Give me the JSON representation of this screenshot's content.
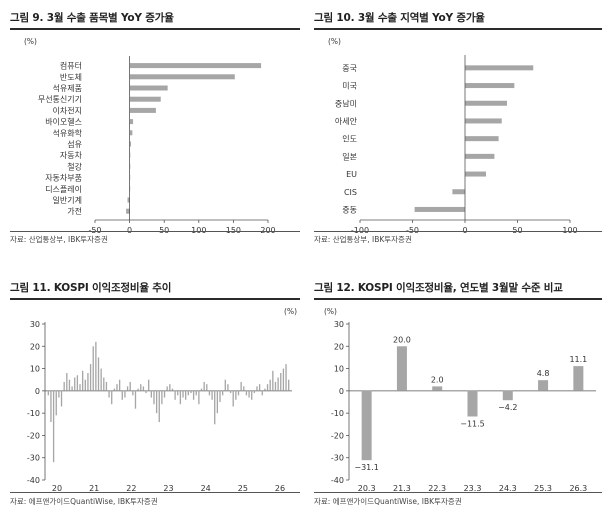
{
  "chart_data": [
    {
      "type": "bar",
      "orientation": "horizontal",
      "title": "그림 9. 3월 수출 품목별 YoY 증가율",
      "unit": "(%)",
      "source": "자료: 산업통상부, IBK투자증권",
      "categories": [
        "컴퓨터",
        "반도체",
        "석유제품",
        "무선통신기기",
        "이차전지",
        "바이오헬스",
        "석유화학",
        "섬유",
        "자동차",
        "철강",
        "자동차부품",
        "디스플레이",
        "일반기계",
        "가전"
      ],
      "values": [
        190,
        152,
        55,
        45,
        38,
        5,
        4,
        2,
        1,
        1,
        0,
        0,
        -3,
        -5
      ],
      "xlim": [
        -50,
        200
      ],
      "xticks": [
        "-50",
        "0",
        "50",
        "100",
        "150",
        "200"
      ],
      "xtick_values": [
        -50,
        0,
        50,
        100,
        150,
        200
      ],
      "bar_color": "#a6a6a6"
    },
    {
      "type": "bar",
      "orientation": "horizontal",
      "title": "그림 10. 3월 수출 지역별 YoY 증가율",
      "unit": "(%)",
      "source": "자료: 산업통상부, IBK투자증권",
      "categories": [
        "중국",
        "미국",
        "중남미",
        "아세안",
        "인도",
        "일본",
        "EU",
        "CIS",
        "중동"
      ],
      "values": [
        65,
        47,
        40,
        35,
        32,
        28,
        20,
        -12,
        -48
      ],
      "xlim": [
        -100,
        100
      ],
      "xticks": [
        "-100",
        "-50",
        "0",
        "50",
        "100"
      ],
      "xtick_values": [
        -100,
        -50,
        0,
        50,
        100
      ],
      "bar_color": "#a6a6a6"
    },
    {
      "type": "bar",
      "title": "그림 11. KOSPI 이익조정비율 추이",
      "unit": "(%)",
      "source": "자료: 에프앤가이드QuantiWise, IBK투자증권",
      "x_labels": [
        "20",
        "21",
        "22",
        "23",
        "24",
        "25",
        "26"
      ],
      "values": [
        -2,
        -14,
        -32,
        -11,
        -3,
        -7,
        4,
        8,
        5,
        2,
        6,
        7,
        3,
        9,
        5,
        8,
        12,
        20,
        22,
        15,
        10,
        6,
        4,
        -3,
        -6,
        1,
        3,
        5,
        -4,
        -3,
        2,
        4,
        -2,
        -8,
        1,
        3,
        2,
        -1,
        5,
        -3,
        -6,
        -10,
        -14,
        -6,
        -3,
        2,
        3,
        1,
        -4,
        -2,
        -6,
        -3,
        -4,
        -2,
        -1,
        -4,
        -2,
        -6,
        1,
        4,
        3,
        -2,
        -4,
        -15,
        -10,
        -5,
        -2,
        5,
        3,
        -1,
        -7,
        -4,
        -2,
        4,
        2,
        -2,
        -3,
        -4,
        -1,
        2,
        3,
        -2,
        1,
        3,
        5,
        9,
        4,
        6,
        8,
        10,
        12,
        5
      ],
      "ylim": [
        -40,
        30
      ],
      "yticks": [
        "-40",
        "-30",
        "-20",
        "-10",
        "0",
        "10",
        "20",
        "30"
      ],
      "ytick_values": [
        -40,
        -30,
        -20,
        -10,
        0,
        10,
        20,
        30
      ],
      "bar_color": "#a6a6a6"
    },
    {
      "type": "bar",
      "title": "그림 12. KOSPI 이익조정비율, 연도별 3월말 수준 비교",
      "unit": "(%)",
      "source": "자료: 에프앤가이드QuantiWise, IBK투자증권",
      "categories": [
        "20.3",
        "21.3",
        "22.3",
        "23.3",
        "24.3",
        "25.3",
        "26.3"
      ],
      "values": [
        -31.1,
        20.0,
        2.0,
        -11.5,
        -4.2,
        4.8,
        11.1
      ],
      "data_labels": [
        "−31.1",
        "20.0",
        "2.0",
        "−11.5",
        "−4.2",
        "4.8",
        "11.1"
      ],
      "ylim": [
        -40,
        30
      ],
      "yticks": [
        "-40",
        "-30",
        "-20",
        "-10",
        "0",
        "10",
        "20",
        "30"
      ],
      "ytick_values": [
        -40,
        -30,
        -20,
        -10,
        0,
        10,
        20,
        30
      ],
      "bar_color": "#a6a6a6"
    }
  ]
}
